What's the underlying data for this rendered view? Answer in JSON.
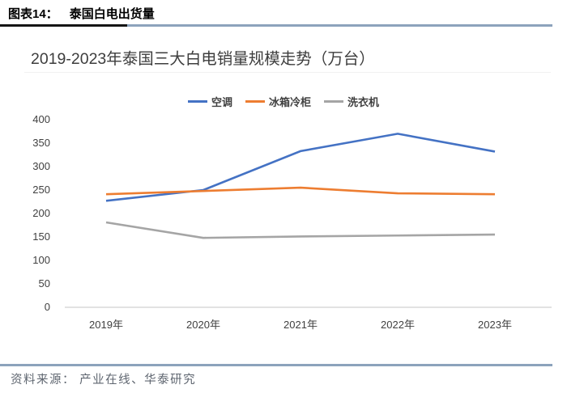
{
  "header": {
    "label": "图表14：",
    "title": "泰国白电出货量"
  },
  "figure": {
    "title": "2019-2023年泰国三大白电销量规模走势（万台）"
  },
  "chart_data": {
    "type": "line",
    "title": "2019-2023年泰国三大白电销量规模走势（万台）",
    "categories": [
      "2019年",
      "2020年",
      "2021年",
      "2022年",
      "2023年"
    ],
    "series": [
      {
        "name": "空调",
        "color": "#4472C4",
        "values": [
          227,
          250,
          333,
          370,
          332
        ]
      },
      {
        "name": "冰箱冷柜",
        "color": "#ED7D31",
        "values": [
          241,
          248,
          255,
          243,
          241
        ]
      },
      {
        "name": "洗衣机",
        "color": "#A5A5A5",
        "values": [
          181,
          148,
          151,
          153,
          155
        ]
      }
    ],
    "ylim": [
      0,
      400
    ],
    "ytick_step": 50,
    "xlabel": "",
    "ylabel": "",
    "grid": false,
    "legend_position": "top-center"
  },
  "footer": {
    "source": "资料来源： 产业在线、华泰研究"
  },
  "colors": {
    "rule_blue": "#8CA3BC",
    "rule_black": "#141414",
    "axis_line": "#D9D9D9",
    "text_dark": "#404040"
  }
}
